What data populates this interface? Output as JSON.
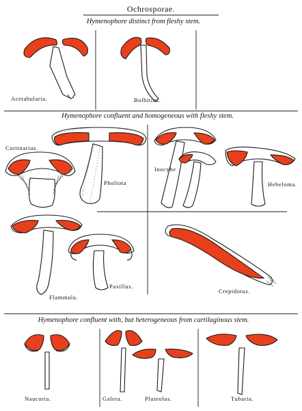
{
  "plate": {
    "title": "Ochrosporae.",
    "colors": {
      "gill": "#e8401c",
      "outline": "#1a1a1a",
      "paper": "#ffffff"
    }
  },
  "sections": [
    {
      "heading": "Hymenophore distinct from fleshy stem.",
      "genera": [
        "Acetabularia.",
        "Bolbitius."
      ]
    },
    {
      "heading": "Hymenophore confluent and homogeneous with fleshy stem.",
      "genera": [
        "Cortinarius.",
        "Pholiota",
        "Inocybe",
        "Hebeloma.",
        "Flammula.",
        "Paxillus.",
        "Crepidotus."
      ]
    },
    {
      "heading": "Hymenophore confluent with, but heterogeneous from cartilaginous stem.",
      "genera": [
        "Naucoria.",
        "Galera.",
        "Pluteolus.",
        "Tubaria."
      ]
    }
  ]
}
